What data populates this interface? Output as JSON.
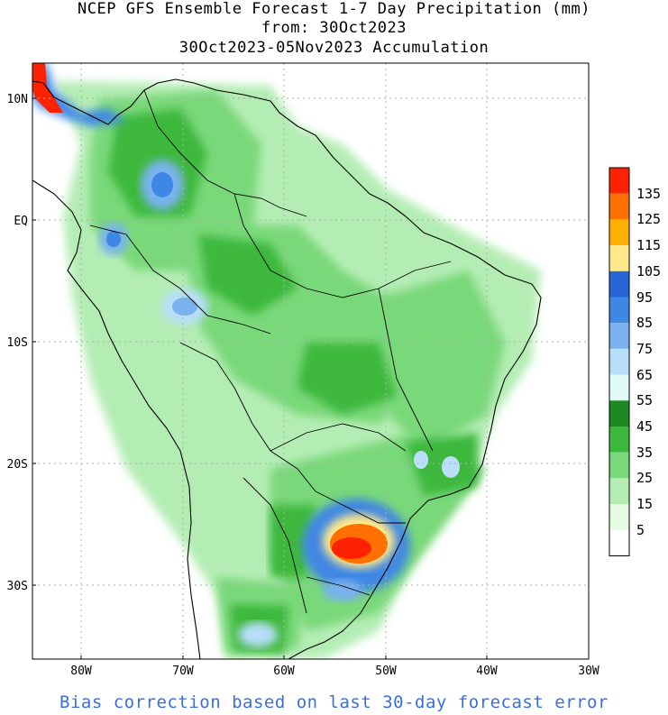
{
  "title": {
    "line1": "NCEP GFS Ensemble Forecast 1-7 Day Precipitation (mm)",
    "line2": "from: 30Oct2023",
    "line3": "30Oct2023-05Nov2023 Accumulation"
  },
  "axes": {
    "lat_labels": [
      "10N",
      "EQ",
      "10S",
      "20S",
      "30S"
    ],
    "lon_labels": [
      "80W",
      "70W",
      "60W",
      "50W",
      "40W",
      "30W"
    ]
  },
  "legend": {
    "labels": [
      "135",
      "125",
      "115",
      "105",
      "95",
      "85",
      "75",
      "65",
      "55",
      "45",
      "35",
      "25",
      "15",
      "5"
    ],
    "colors": [
      "#ff2200",
      "#ff7000",
      "#ffb000",
      "#ffe98a",
      "#2866d8",
      "#3f87e4",
      "#79b2ef",
      "#b8defa",
      "#e0fbf6",
      "#1c8a20",
      "#3cb83c",
      "#79d879",
      "#b4edb4",
      "#e4fbe2"
    ]
  },
  "footer": "Bias correction based on last 30-day forecast error",
  "colors": {
    "footer_text": "#3b6fe0",
    "grid": "#b0b0b0",
    "land_outline": "#000000"
  }
}
